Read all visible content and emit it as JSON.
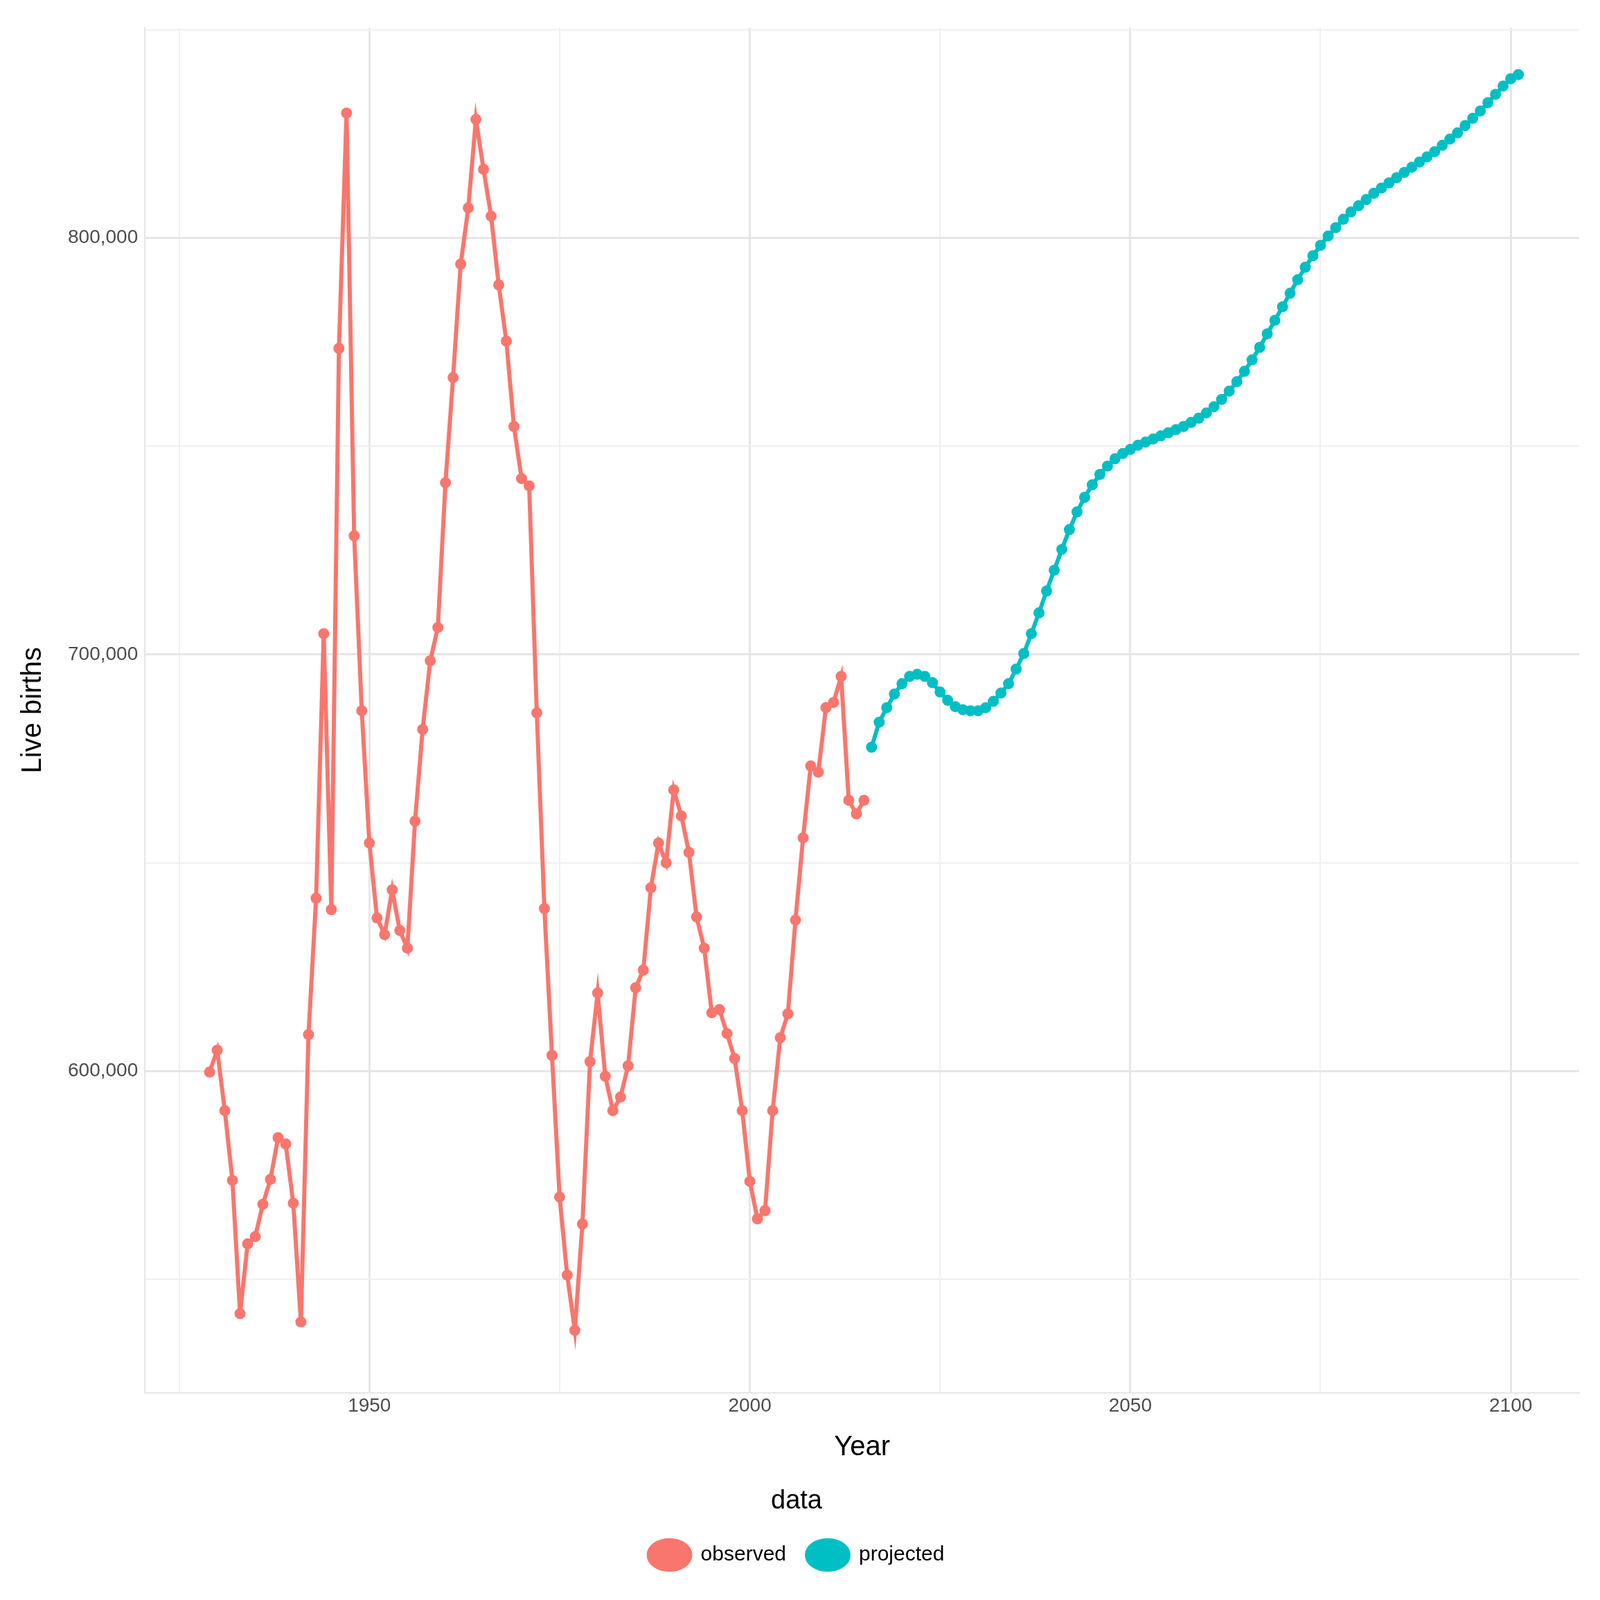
{
  "chart_data": {
    "type": "line",
    "x_label": "Year",
    "y_label": "Live births",
    "legend_title": "data",
    "legend": "bottom",
    "grid": true,
    "marker": "circle",
    "xlim": [
      1920.5,
      2109
    ],
    "xticks": [
      1950,
      2000,
      2050,
      2100
    ],
    "ylim": [
      522750,
      850500
    ],
    "yticks": [
      {
        "value": 600000,
        "label": "600,000"
      },
      {
        "value": 700000,
        "label": "700,000"
      },
      {
        "value": 800000,
        "label": "800,000"
      }
    ],
    "series": [
      {
        "name": "observed",
        "color": "#F8766D",
        "x": [
          1929,
          1930,
          1931,
          1932,
          1933,
          1934,
          1935,
          1936,
          1937,
          1938,
          1939,
          1940,
          1941,
          1942,
          1943,
          1944,
          1945,
          1946,
          1947,
          1948,
          1949,
          1950,
          1951,
          1952,
          1953,
          1954,
          1955,
          1956,
          1957,
          1958,
          1959,
          1960,
          1961,
          1962,
          1963,
          1964,
          1965,
          1966,
          1967,
          1968,
          1969,
          1970,
          1971,
          1972,
          1973,
          1974,
          1975,
          1976,
          1977,
          1978,
          1979,
          1980,
          1981,
          1982,
          1983,
          1984,
          1985,
          1986,
          1987,
          1988,
          1989,
          1990,
          1991,
          1992,
          1993,
          1994,
          1995,
          1996,
          1997,
          1998,
          1999,
          2000,
          2001,
          2002,
          2003,
          2004,
          2005,
          2006,
          2007,
          2008,
          2009,
          2010,
          2011,
          2012,
          2013,
          2014,
          2015
        ],
        "values": [
          599750,
          605000,
          590500,
          573750,
          541750,
          558500,
          560250,
          568000,
          574000,
          584000,
          582500,
          568250,
          539750,
          608750,
          641500,
          705000,
          638750,
          773500,
          830000,
          728500,
          686500,
          654750,
          636750,
          632750,
          643500,
          633750,
          629500,
          660000,
          682000,
          698500,
          706500,
          741250,
          766500,
          793750,
          807250,
          828500,
          816500,
          805250,
          788750,
          775250,
          754750,
          742250,
          740500,
          686000,
          639000,
          603750,
          569750,
          551000,
          537750,
          563250,
          602250,
          618750,
          598750,
          590500,
          593750,
          601250,
          620000,
          624250,
          644000,
          654750,
          650000,
          667500,
          661250,
          652500,
          637000,
          629500,
          614000,
          614750,
          609000,
          603000,
          590500,
          573500,
          564500,
          566500,
          590500,
          608000,
          613750,
          636250,
          656000,
          673250,
          671750,
          687250,
          688500,
          694750,
          665000,
          661750,
          665000
        ]
      },
      {
        "name": "projected",
        "color": "#00BFC4",
        "x": [
          2016,
          2017,
          2018,
          2019,
          2020,
          2021,
          2022,
          2023,
          2024,
          2025,
          2026,
          2027,
          2028,
          2029,
          2030,
          2031,
          2032,
          2033,
          2034,
          2035,
          2036,
          2037,
          2038,
          2039,
          2040,
          2041,
          2042,
          2043,
          2044,
          2045,
          2046,
          2047,
          2048,
          2049,
          2050,
          2051,
          2052,
          2053,
          2054,
          2055,
          2056,
          2057,
          2058,
          2059,
          2060,
          2061,
          2062,
          2063,
          2064,
          2065,
          2066,
          2067,
          2068,
          2069,
          2070,
          2071,
          2072,
          2073,
          2074,
          2075,
          2076,
          2077,
          2078,
          2079,
          2080,
          2081,
          2082,
          2083,
          2084,
          2085,
          2086,
          2087,
          2088,
          2089,
          2090,
          2091,
          2092,
          2093,
          2094,
          2095,
          2096,
          2097,
          2098,
          2099,
          2100,
          2101
        ],
        "values": [
          677750,
          683750,
          687250,
          690500,
          693000,
          694750,
          695250,
          694750,
          693250,
          691000,
          689000,
          687500,
          686750,
          686500,
          686500,
          687250,
          688750,
          690750,
          693000,
          696500,
          700250,
          705000,
          710000,
          715250,
          720250,
          725250,
          730000,
          734250,
          737750,
          740750,
          743250,
          745250,
          747000,
          748250,
          749250,
          750250,
          751000,
          751750,
          752500,
          753250,
          754000,
          754750,
          755750,
          756750,
          758000,
          759500,
          761250,
          763250,
          765500,
          768000,
          770750,
          773750,
          777000,
          780250,
          783500,
          786750,
          790000,
          793000,
          795750,
          798250,
          800500,
          802500,
          804500,
          806250,
          807750,
          809250,
          810750,
          812000,
          813250,
          814500,
          815750,
          817000,
          818250,
          819500,
          820750,
          822250,
          823750,
          825250,
          827000,
          828750,
          830500,
          832500,
          834500,
          836500,
          838250,
          839250
        ]
      }
    ]
  }
}
